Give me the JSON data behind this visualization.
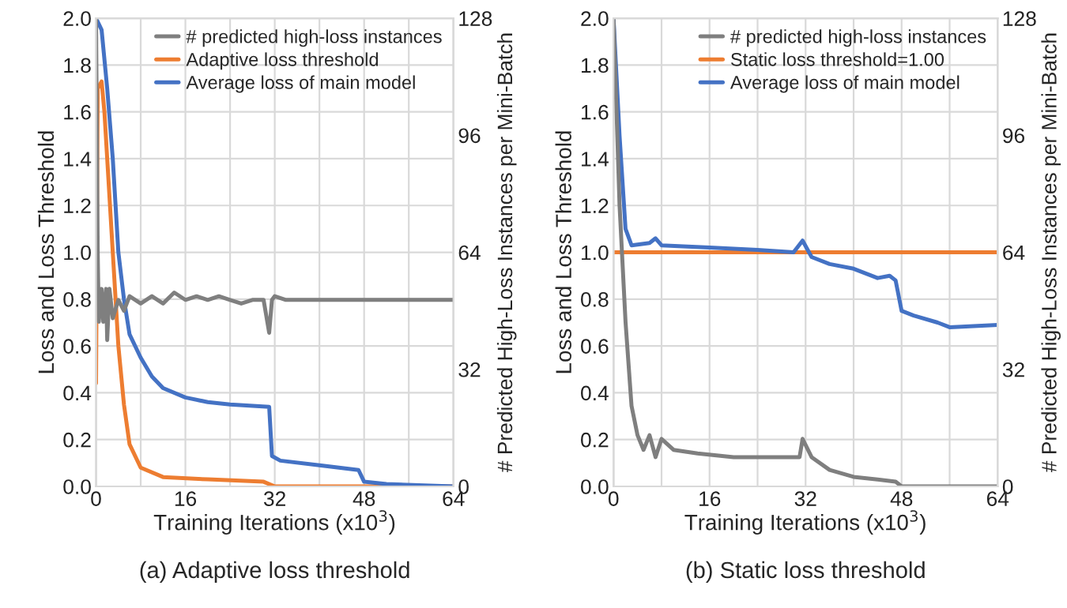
{
  "chart_data": [
    {
      "type": "line",
      "title": "(a) Adaptive loss threshold",
      "xlabel": "Training Iterations (x10$^{3}$)",
      "ylabel": "Loss and Loss Threshold",
      "y2label": "# Predicted High-Loss Instances per Mini-Batch",
      "xlim": [
        0,
        64
      ],
      "xticks": [
        0,
        {
          "value": 8,
          "label": null
        },
        16,
        {
          "value": 24,
          "label": null
        },
        32,
        {
          "value": 40,
          "label": null
        },
        48,
        {
          "value": 56,
          "label": null
        },
        64
      ],
      "ylim": [
        0,
        2.0
      ],
      "yticks": [
        {
          "value": 0,
          "label": "0.0"
        },
        0.2,
        0.4,
        0.6,
        0.8,
        {
          "value": 1,
          "label": "1.0"
        },
        1.2,
        1.4,
        1.6,
        1.8,
        {
          "value": 2,
          "label": "2.0"
        }
      ],
      "y2lim": [
        0,
        128
      ],
      "y2ticks": [
        0,
        32,
        64,
        96,
        128
      ],
      "grid": true,
      "legend": "top right",
      "series": [
        {
          "name": "# predicted high-loss instances",
          "color": "#7f7f7f",
          "axis": "y2",
          "x": [
            0,
            0.3,
            0.5,
            1,
            1.3,
            1.8,
            2,
            2.4,
            3,
            4,
            5,
            6,
            8,
            10,
            12,
            14,
            16,
            18,
            20,
            22,
            24,
            26,
            28,
            30,
            31,
            31.5,
            32,
            34,
            40,
            48,
            56,
            64
          ],
          "values": [
            128,
            64,
            45,
            54,
            45,
            54,
            40,
            54,
            46,
            51,
            48,
            52,
            50,
            52,
            50,
            53,
            51,
            52,
            51,
            52,
            51,
            50,
            51,
            51,
            42,
            51,
            52,
            51,
            51,
            51,
            51,
            51
          ]
        },
        {
          "name": "Adaptive loss threshold",
          "color": "#ed7d31",
          "x": [
            0,
            0.3,
            1,
            1.5,
            2,
            3,
            4,
            5,
            6,
            8,
            12,
            20,
            30,
            32,
            64
          ],
          "values": [
            0.44,
            1.7,
            1.73,
            1.6,
            1.4,
            1.0,
            0.6,
            0.35,
            0.18,
            0.08,
            0.04,
            0.03,
            0.02,
            0.0,
            0.0
          ]
        },
        {
          "name": "Average loss of main model",
          "color": "#4472c4",
          "x": [
            0,
            1,
            2,
            3,
            4,
            5,
            6,
            8,
            10,
            12,
            16,
            20,
            24,
            31,
            31.5,
            33,
            40,
            47,
            48,
            52,
            64
          ],
          "values": [
            2.0,
            1.95,
            1.7,
            1.4,
            1.0,
            0.8,
            0.65,
            0.55,
            0.47,
            0.42,
            0.38,
            0.36,
            0.35,
            0.34,
            0.13,
            0.11,
            0.09,
            0.07,
            0.02,
            0.01,
            0.0
          ]
        }
      ]
    },
    {
      "type": "line",
      "title": "(b) Static loss threshold",
      "xlabel": "Training Iterations (x10$^{3}$)",
      "ylabel": "Loss and Loss Threshold",
      "y2label": "# Predicted High-Loss Instances per Mini-Batch",
      "xlim": [
        0,
        64
      ],
      "xticks": [
        0,
        {
          "value": 8,
          "label": null
        },
        16,
        {
          "value": 24,
          "label": null
        },
        32,
        {
          "value": 40,
          "label": null
        },
        48,
        {
          "value": 56,
          "label": null
        },
        64
      ],
      "ylim": [
        0,
        2.0
      ],
      "yticks": [
        {
          "value": 0,
          "label": "0.0"
        },
        0.2,
        0.4,
        0.6,
        0.8,
        {
          "value": 1,
          "label": "1.0"
        },
        1.2,
        1.4,
        1.6,
        1.8,
        {
          "value": 2,
          "label": "2.0"
        }
      ],
      "y2lim": [
        0,
        128
      ],
      "y2ticks": [
        0,
        32,
        64,
        96,
        128
      ],
      "grid": true,
      "legend": "top right",
      "series": [
        {
          "name": "# predicted high-loss instances",
          "color": "#7f7f7f",
          "axis": "y2",
          "x": [
            0,
            1,
            2,
            3,
            4,
            5,
            6,
            7,
            8,
            10,
            14,
            20,
            28,
            31,
            31.5,
            33,
            36,
            40,
            44,
            47,
            48,
            64
          ],
          "values": [
            128,
            77,
            45,
            22,
            14,
            10,
            14,
            8,
            13,
            10,
            9,
            8,
            8,
            8,
            13,
            8,
            4.5,
            2.6,
            1.9,
            1.3,
            0,
            0
          ]
        },
        {
          "name": "Static loss threshold=1.00",
          "color": "#ed7d31",
          "x": [
            0,
            64
          ],
          "values": [
            1.0,
            1.0
          ]
        },
        {
          "name": "Average loss of main model",
          "color": "#4472c4",
          "x": [
            0,
            1,
            2,
            3,
            6,
            7,
            8,
            16,
            24,
            30,
            31.5,
            33,
            36,
            40,
            44,
            46,
            47,
            48,
            50,
            54,
            56,
            64
          ],
          "values": [
            2.0,
            1.5,
            1.1,
            1.03,
            1.04,
            1.06,
            1.03,
            1.02,
            1.01,
            1.0,
            1.05,
            0.98,
            0.95,
            0.93,
            0.89,
            0.9,
            0.88,
            0.75,
            0.73,
            0.7,
            0.68,
            0.69
          ]
        }
      ]
    }
  ]
}
